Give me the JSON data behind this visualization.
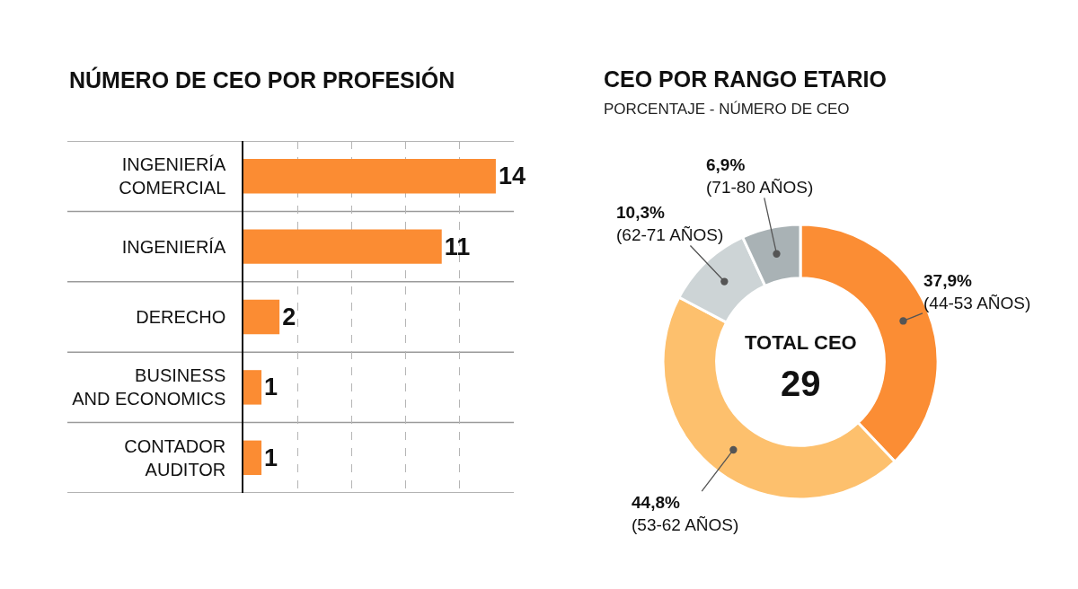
{
  "chart_data": [
    {
      "type": "bar",
      "orientation": "horizontal",
      "title": "NÚMERO DE CEO POR PROFESIÓN",
      "categories": [
        "INGENIERÍA\nCOMERCIAL",
        "INGENIERÍA",
        "DERECHO",
        "BUSINESS\nAND ECONOMICS",
        "CONTADOR\nAUDITOR"
      ],
      "values": [
        14,
        11,
        2,
        1,
        1
      ],
      "color": "#fb8c33",
      "data_labels": true,
      "xlim": [
        0,
        15
      ],
      "xticks": [
        {
          "value": 0,
          "label": null
        },
        {
          "value": 3,
          "label": null
        },
        {
          "value": 6,
          "label": null
        },
        {
          "value": 9,
          "label": null
        },
        {
          "value": 12,
          "label": null
        }
      ],
      "tick_labels": "y",
      "grid": true
    },
    {
      "type": "donut",
      "title": "CEO POR RANGO ETARIO",
      "subtitle": "PORCENTAJE - NÚMERO DE CEO",
      "categories": [
        "(44-53 AÑOS)",
        "(53-62 AÑOS)",
        "(62-71 AÑOS)",
        "(71-80 AÑOS)"
      ],
      "values": [
        37.9,
        44.8,
        10.3,
        6.9
      ],
      "colors": [
        "#fb8d34",
        "#fdc06d",
        "#cdd4d6",
        "#a9b2b5"
      ],
      "value_labels": [
        "37,9%",
        "44,8%",
        "10,3%",
        "6,9%"
      ],
      "annotations": [
        "TOTAL CEO",
        "29"
      ]
    }
  ]
}
